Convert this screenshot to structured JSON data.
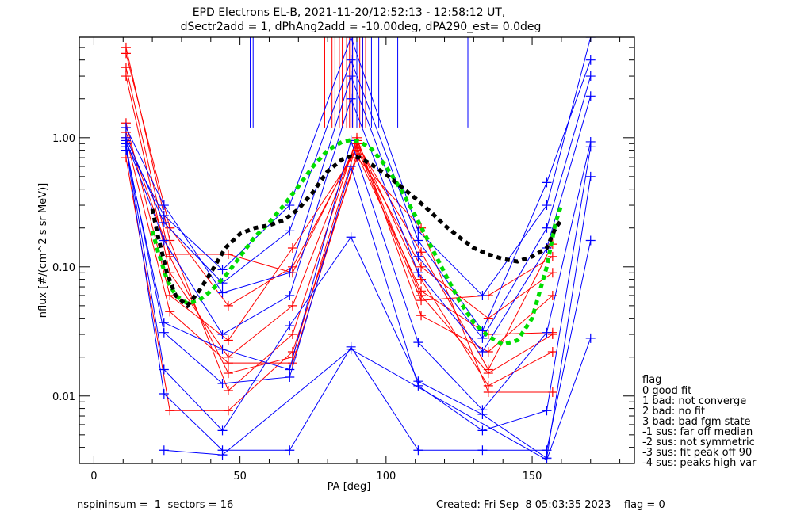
{
  "chart_data": {
    "type": "line",
    "title": "EPD Electrons EL-B, 2021-11-20/12:52:13 - 12:58:12 UT,",
    "subtitle": "dSectr2add = 1, dPhAng2add = -10.00deg, dPA290_est=   0.0deg",
    "xlabel": "PA [deg]",
    "ylabel": "nflux [#/(cm^2 s sr MeV)]",
    "xlim": [
      -5,
      185
    ],
    "ylim": [
      0.003,
      6.0
    ],
    "yscale": "log",
    "xticks": [
      0,
      50,
      100,
      150
    ],
    "xtick_labels": [
      "0",
      "50",
      "100",
      "150"
    ],
    "yticks": [
      0.01,
      0.1,
      1.0
    ],
    "ytick_labels": [
      "0.01",
      "0.10",
      "1.00"
    ],
    "grid": false,
    "colors": {
      "red": "#ff0000",
      "blue": "#0000ff",
      "fit_green": "#00dd00",
      "fit_black": "#000000"
    },
    "series": [
      {
        "name": "red-1",
        "color": "red",
        "x": [
          11,
          26,
          46,
          68,
          90,
          112,
          135,
          157
        ],
        "y": [
          5.0,
          0.16,
          0.011,
          0.03,
          1.0,
          0.042,
          0.022,
          0.06
        ]
      },
      {
        "name": "red-2",
        "color": "red",
        "x": [
          11,
          26,
          46,
          68,
          90,
          112,
          135,
          157
        ],
        "y": [
          3.5,
          0.12,
          0.015,
          0.02,
          0.9,
          0.06,
          0.015,
          0.03
        ]
      },
      {
        "name": "red-3",
        "color": "red",
        "x": [
          11,
          26,
          46,
          68,
          90,
          112,
          135,
          157
        ],
        "y": [
          3.0,
          0.09,
          0.02,
          0.05,
          0.95,
          0.08,
          0.012,
          0.022
        ]
      },
      {
        "name": "red-4",
        "color": "red",
        "x": [
          11,
          26,
          46,
          68,
          90,
          112,
          135,
          157
        ],
        "y": [
          4.5,
          0.2,
          0.05,
          0.1,
          0.85,
          0.055,
          0.06,
          0.12
        ]
      },
      {
        "name": "red-5",
        "color": "red",
        "x": [
          11,
          26,
          46,
          68,
          90,
          112,
          135,
          157
        ],
        "y": [
          1.3,
          0.06,
          0.027,
          0.14,
          0.8,
          0.1,
          0.04,
          0.09
        ]
      },
      {
        "name": "red-6",
        "color": "red",
        "x": [
          11,
          26,
          46,
          68,
          90,
          112,
          135,
          157
        ],
        "y": [
          1.0,
          0.045,
          0.018,
          0.018,
          0.75,
          0.065,
          0.03,
          0.031
        ]
      },
      {
        "name": "red-7",
        "color": "red",
        "x": [
          11,
          26,
          46,
          68,
          90,
          112,
          135,
          157
        ],
        "y": [
          0.7,
          0.0077,
          0.0077,
          0.022,
          0.7,
          0.2,
          0.0107,
          0.0107
        ]
      },
      {
        "name": "red-8",
        "color": "red",
        "x": [
          11,
          26,
          46,
          68,
          90,
          112,
          135,
          157
        ],
        "y": [
          1.1,
          0.125,
          0.125,
          0.09,
          0.9,
          0.13,
          0.016,
          0.15
        ]
      },
      {
        "name": "blue-1",
        "color": "blue",
        "x": [
          11,
          24,
          44,
          67,
          88,
          111,
          133,
          155,
          170
        ],
        "y": [
          0.9,
          0.25,
          0.095,
          0.3,
          6.0,
          0.19,
          0.06,
          0.3,
          6.0
        ]
      },
      {
        "name": "blue-2",
        "color": "blue",
        "x": [
          11,
          24,
          44,
          67,
          88,
          111,
          133,
          155,
          170
        ],
        "y": [
          1.0,
          0.22,
          0.075,
          0.19,
          4.0,
          0.16,
          0.032,
          0.45,
          4.0
        ]
      },
      {
        "name": "blue-3",
        "color": "blue",
        "x": [
          11,
          24,
          44,
          67,
          88,
          111,
          133,
          155,
          170
        ],
        "y": [
          1.2,
          0.3,
          0.063,
          0.09,
          3.0,
          0.12,
          0.028,
          0.2,
          3.0
        ]
      },
      {
        "name": "blue-4",
        "color": "blue",
        "x": [
          11,
          24,
          44,
          67,
          88,
          111,
          133,
          155,
          170
        ],
        "y": [
          0.95,
          0.16,
          0.03,
          0.06,
          2.0,
          0.09,
          0.022,
          0.14,
          2.1
        ]
      },
      {
        "name": "blue-5",
        "color": "blue",
        "x": [
          11,
          24,
          44,
          67,
          88,
          111,
          133,
          155,
          170
        ],
        "y": [
          0.8,
          0.037,
          0.023,
          0.016,
          0.95,
          0.026,
          0.0078,
          0.031,
          0.93
        ]
      },
      {
        "name": "blue-6",
        "color": "blue",
        "x": [
          11,
          24,
          44,
          67,
          88,
          111,
          133,
          155,
          170
        ],
        "y": [
          0.85,
          0.031,
          0.0125,
          0.014,
          0.6,
          0.012,
          0.0054,
          0.0077,
          0.85
        ]
      },
      {
        "name": "blue-7",
        "color": "blue",
        "x": [
          11,
          24,
          44,
          67,
          88,
          111,
          133,
          155,
          170
        ],
        "y": [
          0.9,
          0.016,
          0.0054,
          0.035,
          0.17,
          0.013,
          0.0072,
          0.0033,
          0.5
        ]
      },
      {
        "name": "blue-8",
        "color": "blue",
        "x": [
          11,
          24,
          44,
          67,
          88,
          111,
          133,
          155,
          170
        ],
        "y": [
          0.85,
          0.0104,
          0.0038,
          0.0038,
          0.024,
          0.0038,
          0.0038,
          0.0038,
          0.16
        ]
      },
      {
        "name": "blue-9",
        "color": "blue",
        "x": [
          24,
          44,
          88,
          155,
          170
        ],
        "y": [
          0.0038,
          0.0035,
          0.023,
          0.0032,
          0.028
        ]
      }
    ],
    "vlines": {
      "red": [
        79,
        81.5,
        82.5,
        84,
        85,
        86.5,
        87.5,
        88,
        89,
        90,
        91,
        92,
        93
      ],
      "blue": [
        53.5,
        54.5,
        88.5,
        90,
        92,
        95,
        97.5,
        104,
        128
      ]
    },
    "vline_y": [
      1.2,
      6.0
    ],
    "fits": [
      {
        "name": "green-fit",
        "color": "fit_green",
        "x": [
          20,
          22,
          25,
          28,
          32,
          36,
          40,
          45,
          50,
          55,
          60,
          65,
          70,
          75,
          80,
          85,
          88,
          91,
          95,
          100,
          105,
          110,
          115,
          120,
          125,
          130,
          135,
          140,
          145,
          150,
          155,
          158,
          160
        ],
        "y": [
          0.19,
          0.13,
          0.08,
          0.06,
          0.052,
          0.055,
          0.065,
          0.085,
          0.12,
          0.17,
          0.22,
          0.3,
          0.42,
          0.6,
          0.8,
          0.93,
          0.96,
          0.93,
          0.82,
          0.6,
          0.4,
          0.25,
          0.15,
          0.09,
          0.055,
          0.037,
          0.029,
          0.025,
          0.027,
          0.04,
          0.1,
          0.22,
          0.3
        ]
      },
      {
        "name": "black-fit",
        "color": "fit_black",
        "x": [
          20,
          22,
          25,
          28,
          32,
          36,
          40,
          45,
          50,
          55,
          60,
          65,
          70,
          75,
          80,
          85,
          88,
          91,
          95,
          100,
          105,
          110,
          115,
          120,
          125,
          130,
          135,
          140,
          145,
          150,
          155,
          158,
          160
        ],
        "y": [
          0.28,
          0.17,
          0.09,
          0.06,
          0.05,
          0.065,
          0.09,
          0.14,
          0.18,
          0.2,
          0.21,
          0.23,
          0.28,
          0.38,
          0.55,
          0.68,
          0.72,
          0.7,
          0.62,
          0.52,
          0.42,
          0.34,
          0.27,
          0.21,
          0.17,
          0.14,
          0.125,
          0.115,
          0.11,
          0.12,
          0.14,
          0.2,
          0.23
        ]
      }
    ],
    "legend": {
      "title": "flag",
      "position": "bottom-right-outside",
      "entries": [
        " 0 good fit",
        " 1 bad: not converge",
        " 2 bad: no fit",
        " 3 bad: bad fgm state",
        "-1 sus: far off median",
        "-2 sus: not symmetric",
        "-3 sus: fit peak off 90",
        "-4 sus: peaks high var"
      ]
    }
  },
  "footer": {
    "left": "nspininsum =  1  sectors = 16",
    "right": "Created: Fri Sep  8 05:03:35 2023    flag = 0"
  }
}
